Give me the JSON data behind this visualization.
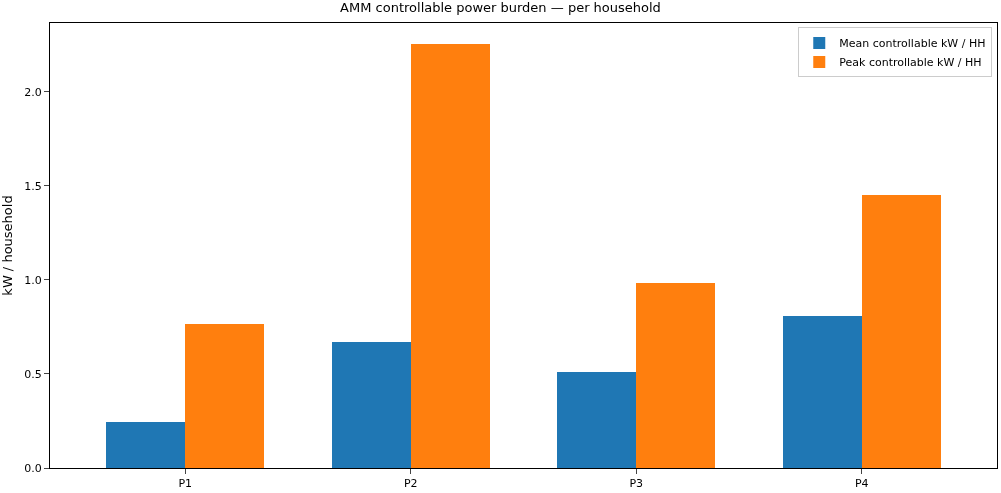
{
  "chart_data": {
    "type": "bar",
    "title": "AMM controllable power burden — per household",
    "ylabel": "kW / household",
    "categories": [
      "P1",
      "P2",
      "P3",
      "P4"
    ],
    "series": [
      {
        "name": "Mean controllable kW / HH",
        "color": "#1f77b4",
        "values": [
          0.245,
          0.67,
          0.51,
          0.81
        ]
      },
      {
        "name": "Peak controllable kW / HH",
        "color": "#ff7f0e",
        "values": [
          0.765,
          2.255,
          0.985,
          1.45
        ]
      }
    ],
    "ylim": [
      0,
      2.365
    ],
    "yticks": [
      {
        "value": 0,
        "label": "0.0"
      },
      {
        "value": 0.5,
        "label": "0.5"
      },
      {
        "value": 1,
        "label": "1.0"
      },
      {
        "value": 1.5,
        "label": "1.5"
      },
      {
        "value": 2,
        "label": "2.0"
      }
    ],
    "legend": "top right"
  }
}
